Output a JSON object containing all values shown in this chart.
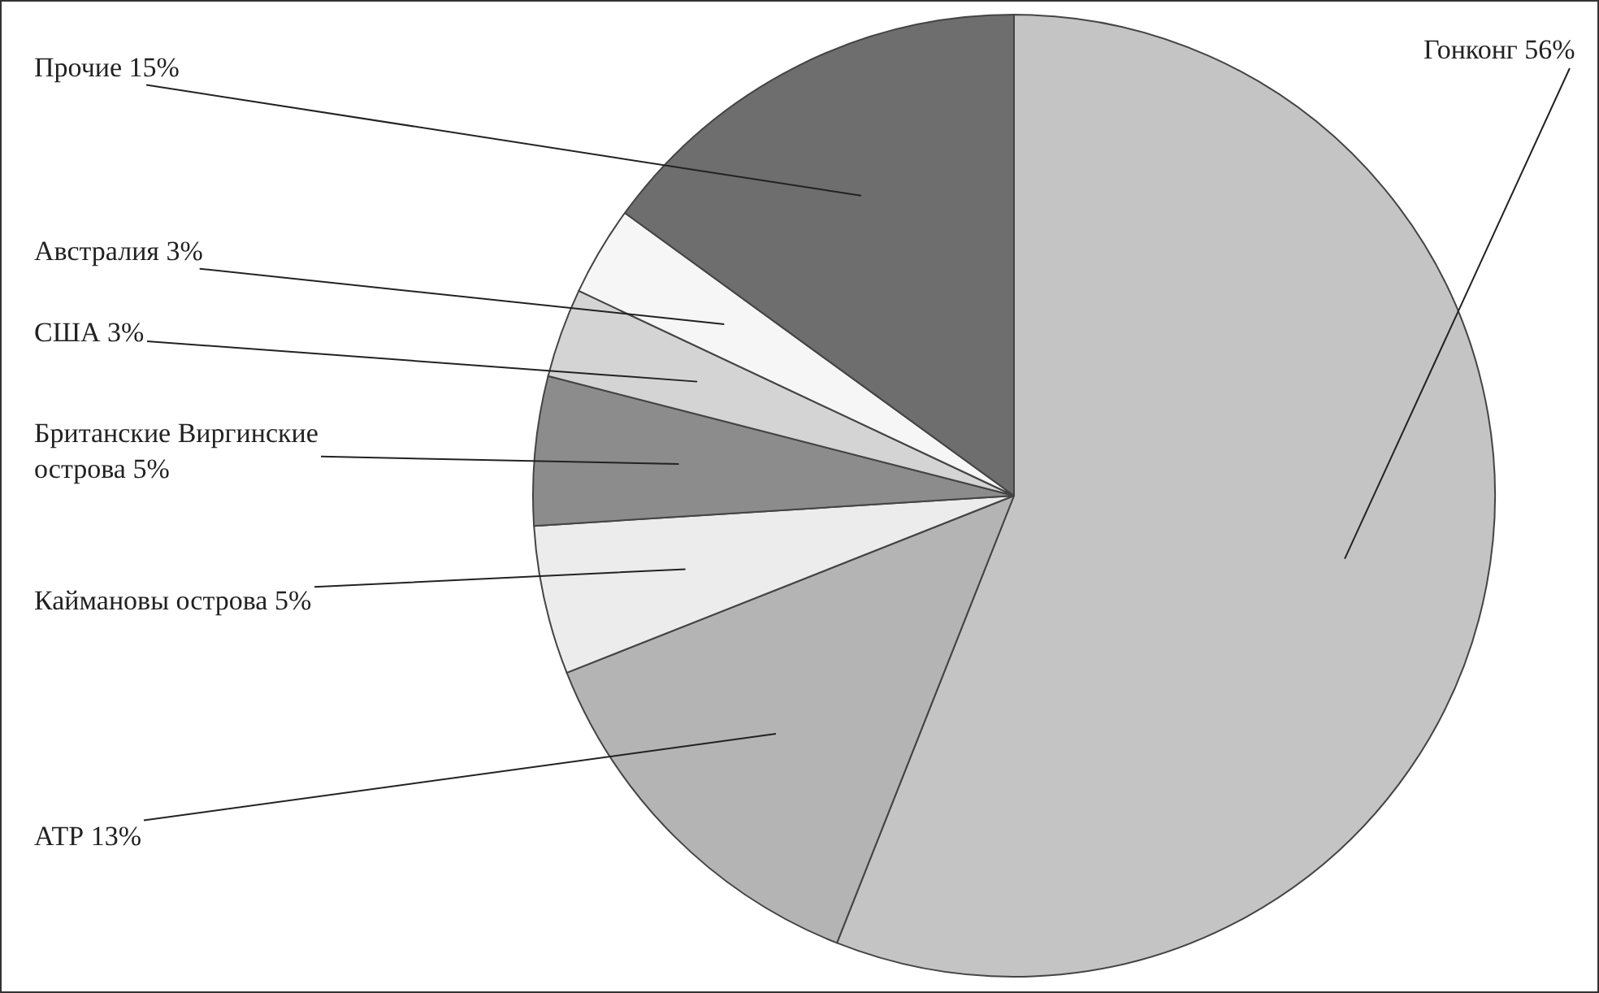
{
  "chart_data": {
    "type": "pie",
    "categories": [
      "Гонконг",
      "АТР",
      "Каймановы острова",
      "Британские Виргинские острова",
      "США",
      "Австралия",
      "Прочие"
    ],
    "values": [
      56,
      13,
      5,
      5,
      3,
      3,
      15
    ],
    "value_labels": [
      "56%",
      "13%",
      "5%",
      "5%",
      "3%",
      "3%",
      "15%"
    ],
    "colors": [
      "#c4c4c4",
      "#b4b4b4",
      "#ececec",
      "#8c8c8c",
      "#d4d4d4",
      "#f6f6f6",
      "#6e6e6e"
    ],
    "legend": false
  }
}
